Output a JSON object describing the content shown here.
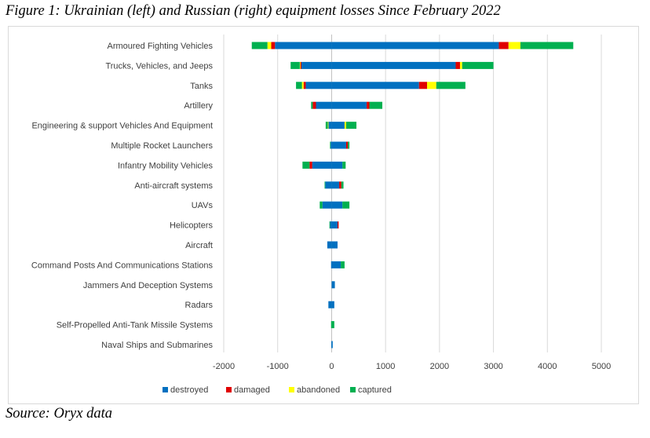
{
  "figure_title": "Figure 1: Ukrainian (left) and Russian (right) equipment losses Since February 2022",
  "source": "Source: Oryx data",
  "colors": {
    "destroyed": "#0070c0",
    "damaged": "#e00000",
    "abandoned": "#ffff00",
    "captured": "#00b050",
    "gridline": "#d9d9d9",
    "axis": "#bfbfbf"
  },
  "chart_data": {
    "type": "bar",
    "orientation": "horizontal",
    "stacked": true,
    "note": "",
    "categories": [
      "Armoured Fighting Vehicles",
      "Trucks, Vehicles, and Jeeps",
      "Tanks",
      "Artillery",
      "Engineering & support Vehicles And Equipment",
      "Multiple Rocket Launchers",
      "Infantry Mobility Vehicles",
      "Anti-aircraft systems",
      "UAVs",
      "Helicopters",
      "Aircraft",
      "Command Posts And Communications Stations",
      "Jammers And Deception Systems",
      "Radars",
      "Self-Propelled Anti-Tank Missile Systems",
      "Naval Ships and Submarines"
    ],
    "xticks": [
      -2000,
      -1000,
      0,
      1000,
      2000,
      3000,
      4000,
      5000
    ],
    "xtick_labels": [
      "-2000",
      "-1000",
      "0",
      "1000",
      "2000",
      "3000",
      "4000",
      "5000"
    ],
    "xlim": [
      -2000,
      5000
    ],
    "grid": "vertical",
    "legend_position": "bottom",
    "series": [
      {
        "name": "destroyed",
        "left": [
          1050,
          560,
          480,
          290,
          60,
          20,
          360,
          120,
          170,
          30,
          80,
          10,
          0,
          60,
          0,
          5
        ],
        "right": [
          3100,
          2300,
          1620,
          650,
          240,
          270,
          200,
          140,
          200,
          110,
          110,
          170,
          60,
          50,
          0,
          20
        ]
      },
      {
        "name": "damaged",
        "left": [
          70,
          20,
          40,
          60,
          0,
          0,
          50,
          0,
          0,
          0,
          0,
          0,
          0,
          0,
          0,
          0
        ],
        "right": [
          180,
          80,
          150,
          50,
          0,
          30,
          0,
          40,
          0,
          20,
          0,
          0,
          0,
          0,
          0,
          0
        ]
      },
      {
        "name": "abandoned",
        "left": [
          70,
          10,
          30,
          0,
          10,
          0,
          0,
          0,
          0,
          0,
          0,
          0,
          0,
          0,
          0,
          0
        ],
        "right": [
          220,
          40,
          170,
          0,
          30,
          0,
          0,
          0,
          0,
          0,
          0,
          0,
          0,
          0,
          0,
          0
        ]
      },
      {
        "name": "captured",
        "left": [
          290,
          170,
          110,
          30,
          40,
          10,
          130,
          10,
          50,
          10,
          0,
          0,
          0,
          0,
          10,
          0
        ],
        "right": [
          980,
          580,
          540,
          240,
          190,
          30,
          60,
          40,
          130,
          0,
          0,
          70,
          0,
          0,
          50,
          0
        ]
      }
    ]
  },
  "legend": {
    "items": [
      "destroyed",
      "damaged",
      "abandoned",
      "captured"
    ]
  }
}
